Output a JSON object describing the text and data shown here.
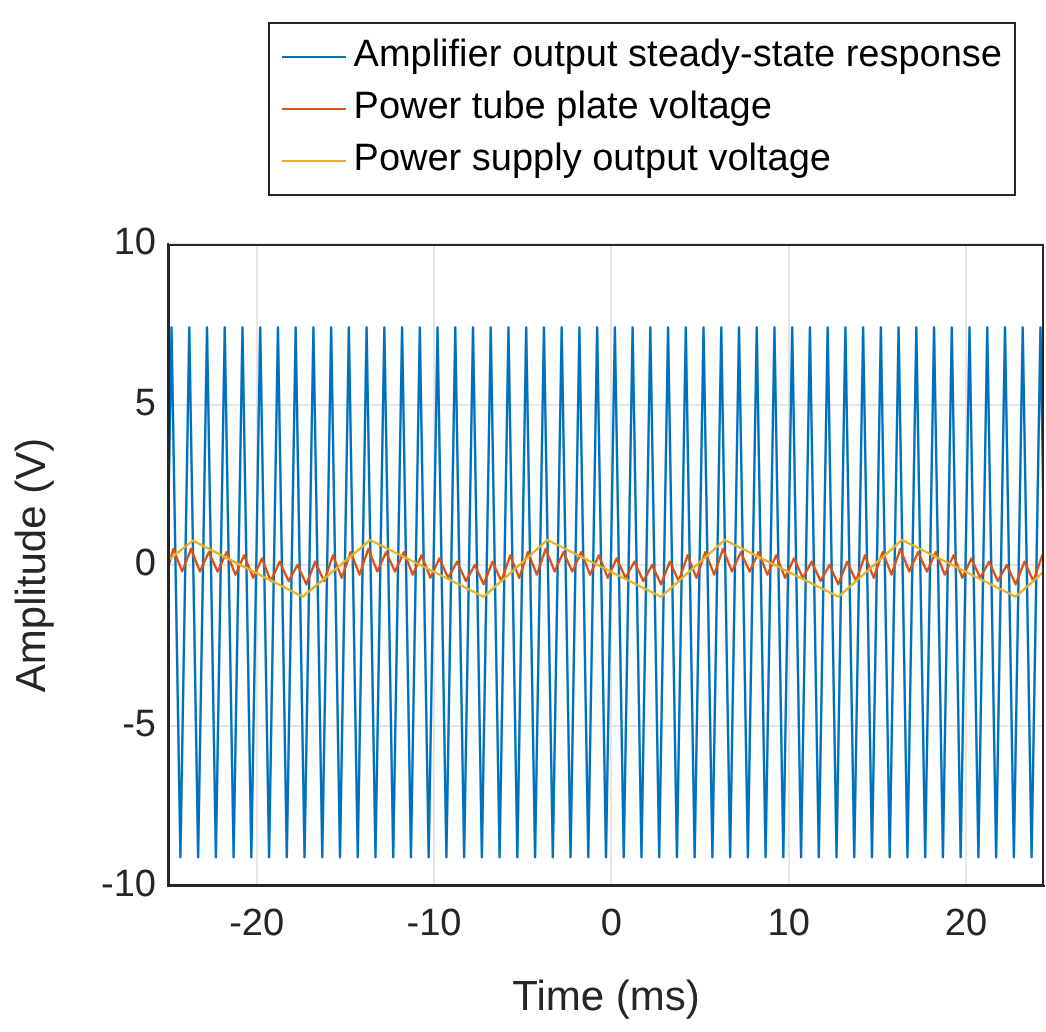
{
  "chart_data": {
    "type": "line",
    "xlabel": "Time (ms)",
    "ylabel": "Amplitude (V)",
    "xlim": [
      -25,
      24.4
    ],
    "ylim": [
      -10,
      10
    ],
    "xticks": [
      -20,
      -10,
      0,
      10,
      20
    ],
    "yticks": [
      -10,
      -5,
      0,
      5,
      10
    ],
    "grid": true,
    "legend": "top right",
    "line_style": "solid",
    "marker": "none",
    "series": [
      {
        "name": "Amplifier output steady-state response",
        "color": "#0072bd",
        "x": [
          -25,
          -24.8,
          -24.3,
          -23.8,
          -23.3,
          -22.8,
          -22.3,
          -21.8,
          -21.3,
          -20.8,
          -20.3,
          -19.8,
          -19.3,
          -18.8,
          -18.3,
          -17.8,
          -17.3,
          -16.8,
          -16.3,
          -15.8,
          -15.3,
          -14.8,
          -14.3,
          -13.8,
          -13.3,
          -12.8,
          -12.3,
          -11.8,
          -11.3,
          -10.8,
          -10.3,
          -9.8,
          -9.3,
          -8.8,
          -8.3,
          -7.8,
          -7.3,
          -6.8,
          -6.3,
          -5.8,
          -5.3,
          -4.8,
          -4.3,
          -3.8,
          -3.3,
          -2.8,
          -2.3,
          -1.8,
          -1.3,
          -0.8,
          -0.3,
          0.2,
          0.7,
          1.2,
          1.7,
          2.2,
          2.7,
          3.2,
          3.7,
          4.2,
          4.7,
          5.2,
          5.7,
          6.2,
          6.7,
          7.2,
          7.7,
          8.2,
          8.7,
          9.2,
          9.7,
          10.2,
          10.7,
          11.2,
          11.7,
          12.2,
          12.7,
          13.2,
          13.7,
          14.2,
          14.7,
          15.2,
          15.7,
          16.2,
          16.7,
          17.2,
          17.7,
          18.2,
          18.7,
          19.2,
          19.7,
          20.2,
          20.7,
          21.2,
          21.7,
          22.2,
          22.7,
          23.2,
          23.7,
          24.2,
          24.4
        ],
        "values": [
          1.0,
          7.4,
          -9.1,
          7.4,
          -9.1,
          7.4,
          -9.1,
          7.4,
          -9.1,
          7.4,
          -9.1,
          7.4,
          -9.1,
          7.4,
          -9.1,
          7.4,
          -9.1,
          7.4,
          -9.1,
          7.4,
          -9.1,
          7.4,
          -9.1,
          7.4,
          -9.1,
          7.4,
          -9.1,
          7.4,
          -9.1,
          7.4,
          -9.1,
          7.4,
          -9.1,
          7.4,
          -9.1,
          7.4,
          -9.1,
          7.4,
          -9.1,
          7.4,
          -9.1,
          7.4,
          -9.1,
          7.4,
          -9.1,
          7.4,
          -9.1,
          7.4,
          -9.1,
          7.4,
          -9.1,
          7.4,
          -9.1,
          7.4,
          -9.1,
          7.4,
          -9.1,
          7.4,
          -9.1,
          7.4,
          -9.1,
          7.4,
          -9.1,
          7.4,
          -9.1,
          7.4,
          -9.1,
          7.4,
          -9.1,
          7.4,
          -9.1,
          7.4,
          -9.1,
          7.4,
          -9.1,
          7.4,
          -9.1,
          7.4,
          -9.1,
          7.4,
          -9.1,
          7.4,
          -9.1,
          7.4,
          -9.1,
          7.4,
          -9.1,
          7.4,
          -9.1,
          7.4,
          -9.1,
          7.4,
          -9.1,
          7.4,
          -9.1,
          7.4,
          -9.1,
          7.4,
          -9.1,
          7.4,
          0.8
        ]
      },
      {
        "name": "Power tube plate voltage",
        "color": "#d95319",
        "x": [
          -25,
          -24.7,
          -24.2,
          -23.7,
          -23.2,
          -22.7,
          -22.2,
          -21.7,
          -21.2,
          -20.7,
          -20.2,
          -19.7,
          -19.2,
          -18.7,
          -18.2,
          -17.7,
          -17.2,
          -16.7,
          -16.2,
          -15.7,
          -15.2,
          -14.7,
          -14.2,
          -13.7,
          -13.2,
          -12.7,
          -12.2,
          -11.7,
          -11.2,
          -10.7,
          -10.2,
          -9.7,
          -9.2,
          -8.7,
          -8.2,
          -7.7,
          -7.2,
          -6.7,
          -6.2,
          -5.7,
          -5.2,
          -4.7,
          -4.2,
          -3.7,
          -3.2,
          -2.7,
          -2.2,
          -1.7,
          -1.2,
          -0.7,
          -0.2,
          0.3,
          0.8,
          1.3,
          1.8,
          2.3,
          2.8,
          3.3,
          3.8,
          4.3,
          4.8,
          5.3,
          5.8,
          6.3,
          6.8,
          7.3,
          7.8,
          8.3,
          8.8,
          9.3,
          9.8,
          10.3,
          10.8,
          11.3,
          11.8,
          12.3,
          12.8,
          13.3,
          13.8,
          14.3,
          14.8,
          15.3,
          15.8,
          16.3,
          16.8,
          17.3,
          17.8,
          18.3,
          18.8,
          19.3,
          19.8,
          20.3,
          20.8,
          21.3,
          21.8,
          22.3,
          22.8,
          23.3,
          23.8,
          24.3,
          24.4
        ],
        "values": [
          -0.1,
          0.5,
          -0.2,
          0.5,
          -0.2,
          0.4,
          -0.2,
          0.4,
          -0.3,
          0.3,
          -0.4,
          0.2,
          -0.5,
          0.1,
          -0.5,
          0,
          -0.6,
          0.1,
          -0.5,
          0.3,
          -0.4,
          0.4,
          -0.3,
          0.5,
          -0.2,
          0.4,
          -0.2,
          0.4,
          -0.3,
          0.3,
          -0.4,
          0.2,
          -0.4,
          0.1,
          -0.5,
          0,
          -0.6,
          0.1,
          -0.5,
          0.3,
          -0.4,
          0.4,
          -0.3,
          0.5,
          -0.2,
          0.4,
          -0.2,
          0.4,
          -0.3,
          0.3,
          -0.4,
          0.2,
          -0.4,
          0.1,
          -0.5,
          0,
          -0.6,
          0.1,
          -0.5,
          0.3,
          -0.4,
          0.4,
          -0.3,
          0.5,
          -0.2,
          0.4,
          -0.2,
          0.4,
          -0.3,
          0.3,
          -0.4,
          0.2,
          -0.4,
          0.1,
          -0.5,
          0,
          -0.6,
          0.1,
          -0.5,
          0.3,
          -0.4,
          0.4,
          -0.3,
          0.5,
          -0.2,
          0.4,
          -0.2,
          0.4,
          -0.3,
          0.3,
          -0.4,
          0.2,
          -0.4,
          0.1,
          -0.5,
          0,
          -0.6,
          0.1,
          -0.5,
          0.3,
          0.2
        ]
      },
      {
        "name": "Power supply output voltage",
        "color": "#edb120",
        "x": [
          -25,
          -23.6,
          -17.4,
          -13.6,
          -7.2,
          -3.6,
          2.8,
          6.4,
          12.8,
          16.4,
          22.8,
          24.4
        ],
        "values": [
          0.15,
          0.76,
          -0.99,
          0.78,
          -0.99,
          0.78,
          -0.99,
          0.78,
          -0.99,
          0.78,
          -0.99,
          -0.2
        ]
      }
    ]
  }
}
